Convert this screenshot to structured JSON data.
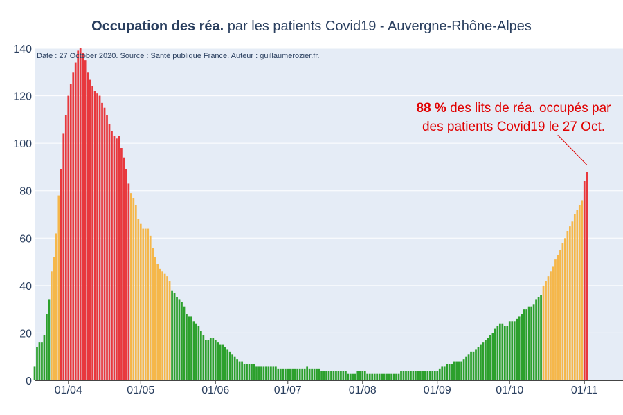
{
  "chart_data": {
    "type": "bar",
    "title_bold": "Occupation des réa.",
    "title_rest": " par les patients Covid19 - Auvergne-Rhône-Alpes",
    "source_note": "Date : 27 October 2020. Source : Santé publique France. Auteur : guillaumerozier.fr.",
    "annotation": {
      "value_text": "88  %",
      "line1_rest": " des lits de réa. occupés par",
      "line2": "des patients Covid19 le 27 Oct.",
      "color": "#e00000"
    },
    "xlabel": "",
    "ylabel": "",
    "ylim": [
      0,
      140
    ],
    "yticks": [
      0,
      20,
      40,
      60,
      80,
      100,
      120,
      140
    ],
    "x_start": "2020-03-18",
    "x_end": "2020-11-17",
    "xticks": [
      {
        "date": "2020-04-01",
        "label": "01/04"
      },
      {
        "date": "2020-05-01",
        "label": "01/05"
      },
      {
        "date": "2020-06-01",
        "label": "01/06"
      },
      {
        "date": "2020-07-01",
        "label": "01/07"
      },
      {
        "date": "2020-08-01",
        "label": "01/08"
      },
      {
        "date": "2020-09-01",
        "label": "01/09"
      },
      {
        "date": "2020-10-01",
        "label": "01/10"
      },
      {
        "date": "2020-11-01",
        "label": "01/11"
      }
    ],
    "colors": {
      "green": "#2ca02c",
      "orange": "#f5b74a",
      "red": "#e8383d",
      "plot_bg": "#e5ecf6",
      "grid": "#ffffff",
      "axis_text": "#2a3f5f"
    },
    "thresholds": {
      "orange_from": 40,
      "red_from": 80
    },
    "first_date": "2020-03-18",
    "values": [
      6,
      14,
      16,
      16,
      19,
      28,
      34,
      46,
      52,
      62,
      78,
      89,
      104,
      112,
      120,
      125,
      130,
      134,
      139,
      140,
      138,
      135,
      130,
      127,
      124,
      122,
      121,
      120,
      117,
      115,
      112,
      108,
      105,
      103,
      102,
      103,
      98,
      94,
      89,
      83,
      79,
      77,
      74,
      68,
      66,
      64,
      64,
      64,
      61,
      56,
      52,
      49,
      47,
      46,
      45,
      44,
      42,
      38,
      37,
      35,
      34,
      33,
      31,
      28,
      27,
      27,
      25,
      24,
      23,
      21,
      19,
      17,
      17,
      18,
      18,
      17,
      16,
      15,
      15,
      14,
      13,
      12,
      11,
      10,
      9,
      8,
      8,
      7,
      7,
      7,
      7,
      7,
      6,
      6,
      6,
      6,
      6,
      6,
      6,
      6,
      6,
      5,
      5,
      5,
      5,
      5,
      5,
      5,
      5,
      5,
      5,
      5,
      5,
      6,
      5,
      5,
      5,
      5,
      5,
      4,
      4,
      4,
      4,
      4,
      4,
      4,
      4,
      4,
      4,
      4,
      3,
      3,
      3,
      3,
      4,
      4,
      4,
      4,
      3,
      3,
      3,
      3,
      3,
      3,
      3,
      3,
      3,
      3,
      3,
      3,
      3,
      3,
      4,
      4,
      4,
      4,
      4,
      4,
      4,
      4,
      4,
      4,
      4,
      4,
      4,
      4,
      4,
      4,
      5,
      6,
      6,
      7,
      7,
      7,
      8,
      8,
      8,
      8,
      9,
      10,
      11,
      12,
      12,
      13,
      14,
      15,
      16,
      17,
      18,
      19,
      20,
      22,
      23,
      24,
      24,
      23,
      23,
      25,
      25,
      25,
      26,
      27,
      28,
      30,
      30,
      31,
      31,
      32,
      34,
      35,
      36,
      40,
      42,
      44,
      46,
      48,
      51,
      53,
      55,
      58,
      60,
      63,
      65,
      67,
      70,
      72,
      74,
      76,
      84,
      88
    ]
  }
}
